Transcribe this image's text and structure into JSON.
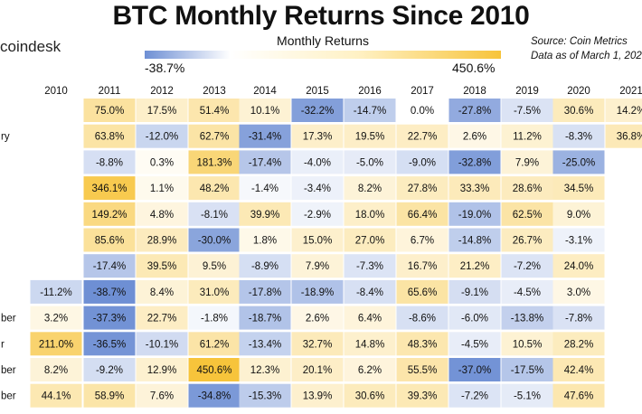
{
  "header": {
    "title": "BTC Monthly Returns Since 2010",
    "logo": "coindesk",
    "source_line1": "Source: Coin Metrics",
    "source_line2": "Data as of March 1, 202"
  },
  "legend": {
    "label": "Monthly Returns",
    "min_label": "-38.7%",
    "max_label": "450.6%",
    "min": -38.7,
    "max": 450.6,
    "colors": {
      "negative": "#6e8fd4",
      "zero": "#ffffff",
      "positive": "#f7c43b"
    }
  },
  "chart_data": {
    "type": "heatmap",
    "title": "BTC Monthly Returns Since 2010",
    "legend_title": "Monthly Returns",
    "unit": "%",
    "columns": [
      "2010",
      "2011",
      "2012",
      "2013",
      "2014",
      "2015",
      "2016",
      "2017",
      "2018",
      "2019",
      "2020",
      "2021"
    ],
    "rows": [
      "",
      "ry",
      "",
      "",
      "",
      "",
      "",
      "",
      "ber",
      "r",
      "ber",
      "ber"
    ],
    "values": [
      [
        null,
        75.0,
        17.5,
        51.4,
        10.1,
        -32.2,
        -14.7,
        0.0,
        -27.8,
        -7.5,
        30.6,
        14.2
      ],
      [
        null,
        63.8,
        -12.0,
        62.7,
        -31.4,
        17.3,
        19.5,
        22.7,
        2.6,
        11.2,
        -8.3,
        36.8
      ],
      [
        null,
        -8.8,
        0.3,
        181.3,
        -17.4,
        -4.0,
        -5.0,
        -9.0,
        -32.8,
        7.9,
        -25.0,
        null
      ],
      [
        null,
        346.1,
        1.1,
        48.2,
        -1.4,
        -3.4,
        8.2,
        27.8,
        33.3,
        28.6,
        34.5,
        null
      ],
      [
        null,
        149.2,
        4.8,
        -8.1,
        39.9,
        -2.9,
        18.0,
        66.4,
        -19.0,
        62.5,
        9.0,
        null
      ],
      [
        null,
        85.6,
        28.9,
        -30.0,
        1.8,
        15.0,
        27.0,
        6.7,
        -14.8,
        26.7,
        -3.1,
        null
      ],
      [
        null,
        -17.4,
        39.5,
        9.5,
        -8.9,
        7.9,
        -7.3,
        16.7,
        21.2,
        -7.2,
        24.0,
        null
      ],
      [
        -11.2,
        -38.7,
        8.4,
        31.0,
        -17.8,
        -18.9,
        -8.4,
        65.6,
        -9.1,
        -4.5,
        3.0,
        null
      ],
      [
        3.2,
        -37.3,
        22.7,
        -1.8,
        -18.7,
        2.6,
        6.4,
        -8.6,
        -6.0,
        -13.8,
        -7.8,
        null
      ],
      [
        211.0,
        -36.5,
        -10.1,
        61.2,
        -13.4,
        32.7,
        14.8,
        48.3,
        -4.5,
        10.5,
        28.2,
        null
      ],
      [
        8.2,
        -9.2,
        12.9,
        450.6,
        12.3,
        20.1,
        6.2,
        55.5,
        -37.0,
        -17.5,
        42.4,
        null
      ],
      [
        44.1,
        58.9,
        7.6,
        -34.8,
        -15.3,
        13.9,
        30.6,
        39.3,
        -7.2,
        -5.1,
        47.6,
        null
      ]
    ]
  }
}
